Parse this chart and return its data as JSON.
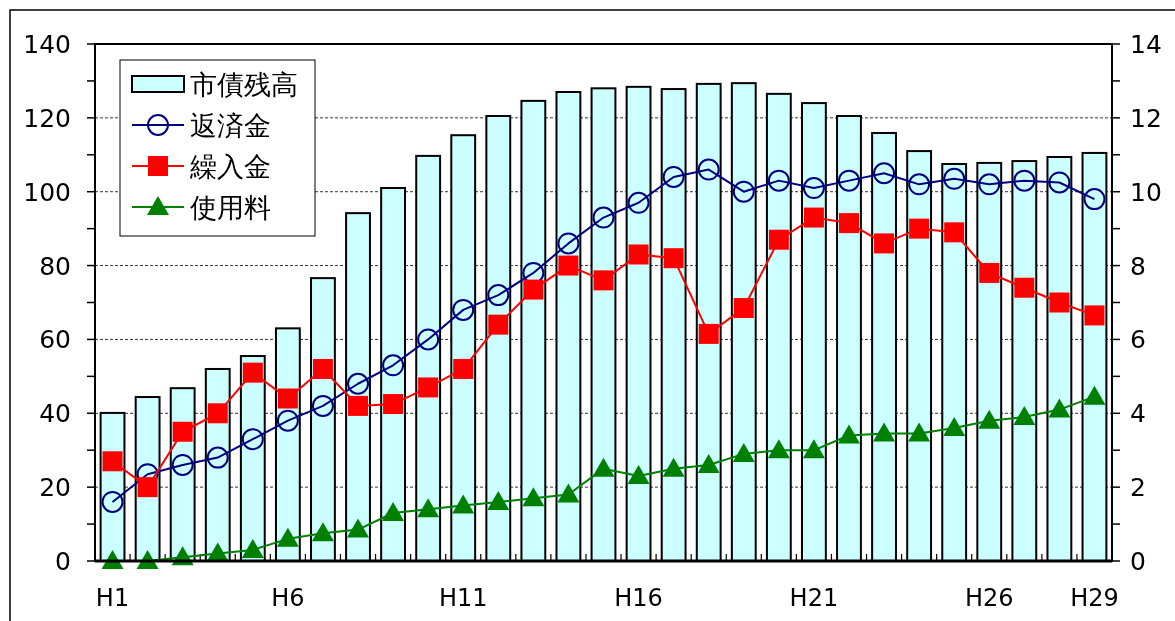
{
  "chart_data": {
    "type": "bar",
    "categories": [
      "H1",
      null,
      null,
      null,
      null,
      "H6",
      null,
      null,
      null,
      null,
      "H11",
      null,
      null,
      null,
      null,
      "H16",
      null,
      null,
      null,
      null,
      "H21",
      null,
      null,
      null,
      null,
      "H26",
      null,
      null,
      "H29"
    ],
    "series": [
      {
        "name": "市債残高",
        "color": "#ccffff",
        "values": [
          40.1,
          44.4,
          46.8,
          52,
          55.5,
          63,
          76.6,
          94.2,
          101,
          109.7,
          115.3,
          120.5,
          124.6,
          127,
          128,
          128.4,
          127.8,
          129.2,
          129.4,
          126.5,
          124,
          120.5,
          115.9,
          111,
          107.5,
          107.8,
          108.3,
          109.4,
          110.5
        ]
      },
      {
        "name": "返済金",
        "type": "line",
        "axis": "y2",
        "marker": "circle",
        "color": "#000080",
        "values": [
          1.6,
          2.35,
          2.6,
          2.8,
          3.3,
          3.8,
          4.2,
          4.8,
          5.3,
          6.0,
          6.8,
          7.2,
          7.8,
          8.6,
          9.3,
          9.7,
          10.4,
          10.6,
          10.0,
          10.3,
          10.1,
          10.3,
          10.5,
          10.2,
          10.35,
          10.2,
          10.3,
          10.25,
          9.8
        ]
      },
      {
        "name": "繰入金",
        "type": "line",
        "axis": "y2",
        "marker": "square",
        "color": "#ff0000",
        "values": [
          2.7,
          2.0,
          3.5,
          4.0,
          5.1,
          4.4,
          5.2,
          4.2,
          4.25,
          4.7,
          5.2,
          6.4,
          7.35,
          8.0,
          7.6,
          8.3,
          8.2,
          6.15,
          6.85,
          8.7,
          9.3,
          9.15,
          8.6,
          9.0,
          8.9,
          7.8,
          7.4,
          7.0,
          6.65
        ]
      },
      {
        "name": "使用料",
        "type": "line",
        "axis": "y2",
        "marker": "triangle",
        "color": "#008000",
        "values": [
          0,
          0,
          0.1,
          0.2,
          0.3,
          0.6,
          0.75,
          0.85,
          1.3,
          1.4,
          1.5,
          1.6,
          1.7,
          1.8,
          2.5,
          2.3,
          2.5,
          2.6,
          2.9,
          3.0,
          3.0,
          3.4,
          3.45,
          3.45,
          3.6,
          3.8,
          3.9,
          4.1,
          4.45
        ]
      }
    ],
    "ylim": [
      0,
      140
    ],
    "yticks": [
      0,
      {
        "value": 10,
        "label": null
      },
      20,
      {
        "value": 30,
        "label": null
      },
      40,
      {
        "value": 50,
        "label": null
      },
      60,
      {
        "value": 70,
        "label": null
      },
      80,
      {
        "value": 90,
        "label": null
      },
      100,
      {
        "value": 110,
        "label": null
      },
      120,
      {
        "value": 130,
        "label": null
      },
      140
    ],
    "y2lim": [
      0,
      14
    ],
    "y2ticks": [
      0,
      {
        "value": 1,
        "label": null
      },
      2,
      {
        "value": 3,
        "label": null
      },
      4,
      {
        "value": 5,
        "label": null
      },
      6,
      {
        "value": 7,
        "label": null
      },
      8,
      {
        "value": 9,
        "label": null
      },
      10,
      {
        "value": 11,
        "label": null
      },
      12,
      {
        "value": 13,
        "label": null
      },
      14
    ],
    "grid": "y",
    "legend": "top left"
  }
}
